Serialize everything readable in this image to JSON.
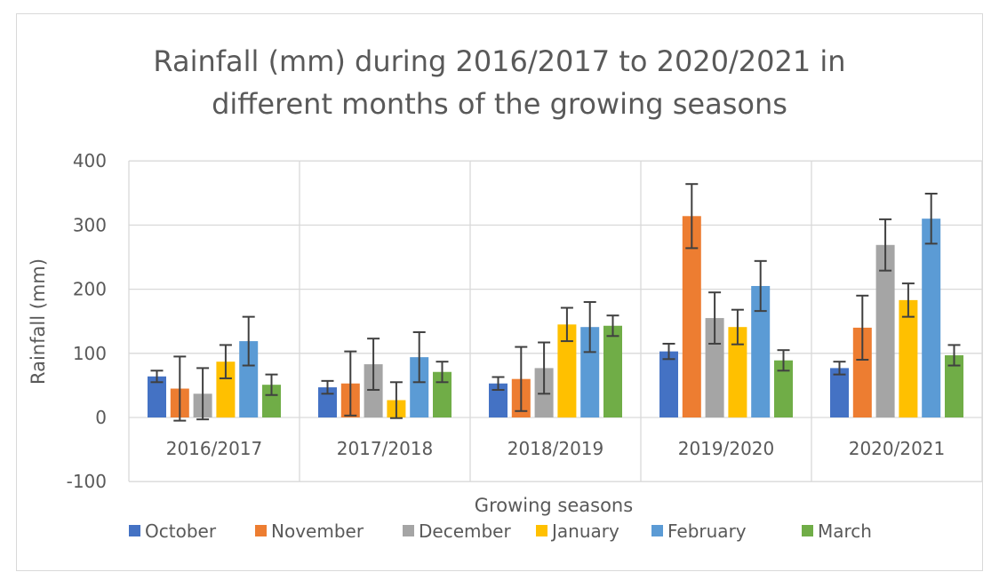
{
  "chart_data": {
    "type": "bar",
    "title": "Rainfall (mm) during 2016/2017 to 2020/2021 in different months of the growing seasons",
    "title_lines": [
      "Rainfall (mm) during 2016/2017 to 2020/2021 in",
      "different months of the growing seasons"
    ],
    "xlabel": "Growing seasons",
    "ylabel": "Rainfall (mm)",
    "ylim": [
      -100,
      400
    ],
    "yticks": [
      -100,
      0,
      100,
      200,
      300,
      400
    ],
    "grid": true,
    "legend_position": "bottom",
    "categories": [
      "2016/2017",
      "2017/2018",
      "2018/2019",
      "2019/2020",
      "2020/2021"
    ],
    "series": [
      {
        "name": "October",
        "color": "#4472c4",
        "values": [
          64,
          47,
          53,
          103,
          77
        ],
        "errors": [
          9,
          10,
          10,
          12,
          10
        ]
      },
      {
        "name": "November",
        "color": "#ed7d31",
        "values": [
          45,
          53,
          60,
          314,
          140
        ],
        "errors": [
          50,
          50,
          50,
          50,
          50
        ]
      },
      {
        "name": "December",
        "color": "#a5a5a5",
        "values": [
          37,
          83,
          77,
          155,
          269
        ],
        "errors": [
          40,
          40,
          40,
          40,
          40
        ]
      },
      {
        "name": "January",
        "color": "#ffc000",
        "values": [
          87,
          27,
          145,
          141,
          183
        ],
        "errors": [
          26,
          28,
          26,
          27,
          26
        ]
      },
      {
        "name": "February",
        "color": "#5b9bd5",
        "values": [
          119,
          94,
          141,
          205,
          310
        ],
        "errors": [
          38,
          39,
          39,
          39,
          39
        ]
      },
      {
        "name": "March",
        "color": "#70ad47",
        "values": [
          51,
          71,
          143,
          89,
          97
        ],
        "errors": [
          16,
          16,
          16,
          16,
          16
        ]
      }
    ]
  }
}
